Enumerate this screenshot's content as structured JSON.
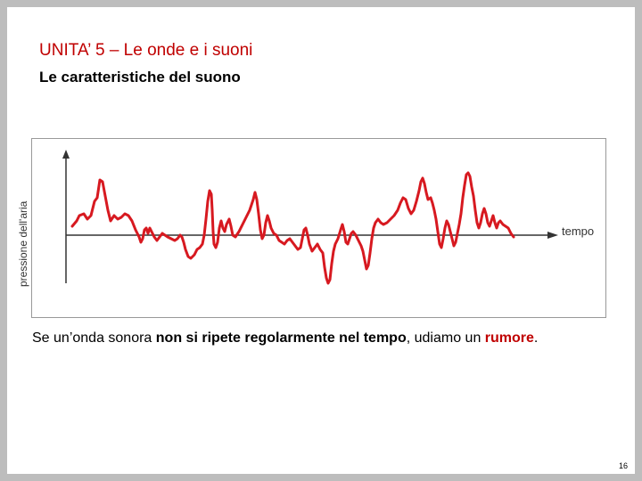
{
  "header": {
    "title": "UNITA’ 5 – Le onde e i suoni",
    "subtitle": "Le caratteristiche del suono"
  },
  "figure": {
    "y_axis_label": "pressione dell'aria",
    "x_axis_label": "tempo",
    "wave_color": "#d71920"
  },
  "caption": {
    "part1": "Se un’onda sonora ",
    "part2": "non si ripete regolarmente nel tempo",
    "part3": ", udiamo un ",
    "part4": "rumore",
    "part5": "."
  },
  "footer": {
    "page_number": "16"
  },
  "colors": {
    "title": "#c00000",
    "accent": "#c00000",
    "background": "#ffffff",
    "frame": "#bdbdbd"
  }
}
